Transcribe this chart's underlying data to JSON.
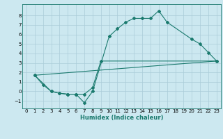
{
  "xlabel": "Humidex (Indice chaleur)",
  "bg_color": "#cce8f0",
  "grid_color": "#aaccd8",
  "line_color": "#1a7a6e",
  "xlim": [
    -0.5,
    23.5
  ],
  "ylim": [
    -1.8,
    9.2
  ],
  "yticks": [
    -1,
    0,
    1,
    2,
    3,
    4,
    5,
    6,
    7,
    8
  ],
  "xticks": [
    0,
    1,
    2,
    3,
    4,
    5,
    6,
    7,
    8,
    9,
    10,
    11,
    12,
    13,
    14,
    15,
    16,
    17,
    18,
    19,
    20,
    21,
    22,
    23
  ],
  "line1_x": [
    1,
    2,
    3,
    4,
    5,
    6,
    7,
    8,
    10,
    11,
    12,
    13,
    14,
    15,
    16,
    17,
    20,
    21,
    22,
    23
  ],
  "line1_y": [
    1.7,
    0.7,
    0.0,
    -0.2,
    -0.3,
    -0.3,
    -1.2,
    0.0,
    5.8,
    6.6,
    7.3,
    7.7,
    7.7,
    7.7,
    8.5,
    7.3,
    5.5,
    5.0,
    4.1,
    3.2
  ],
  "line2_x": [
    1,
    3,
    4,
    5,
    6,
    7,
    8,
    9,
    23
  ],
  "line2_y": [
    1.7,
    0.0,
    -0.2,
    -0.3,
    -0.3,
    -0.3,
    0.4,
    3.2,
    3.2
  ],
  "line3_x": [
    1,
    23
  ],
  "line3_y": [
    1.7,
    3.2
  ],
  "tick_fontsize": 5.0,
  "xlabel_fontsize": 6.0
}
